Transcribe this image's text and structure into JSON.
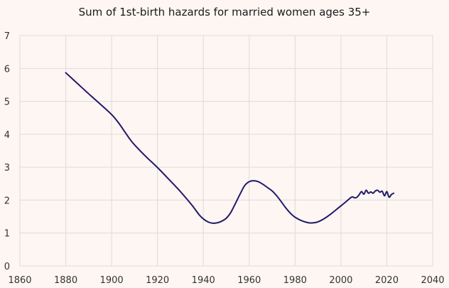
{
  "chart_data": {
    "type": "line",
    "title": "Sum of 1st-birth hazards for married women ages 35+",
    "xlabel": "",
    "ylabel": "",
    "xlim": [
      1860,
      2040
    ],
    "ylim": [
      0,
      7
    ],
    "xticks": [
      1860,
      1880,
      1900,
      1920,
      1940,
      1960,
      1980,
      2000,
      2020,
      2040
    ],
    "yticks": [
      0,
      1,
      2,
      3,
      4,
      5,
      6,
      7
    ],
    "grid": true,
    "legend": "none",
    "series": [
      {
        "color": "#22196b",
        "points": [
          [
            1880,
            5.87
          ],
          [
            1885,
            5.55
          ],
          [
            1890,
            5.23
          ],
          [
            1895,
            4.92
          ],
          [
            1900,
            4.6
          ],
          [
            1903,
            4.35
          ],
          [
            1906,
            4.05
          ],
          [
            1908,
            3.85
          ],
          [
            1910,
            3.68
          ],
          [
            1915,
            3.32
          ],
          [
            1920,
            2.99
          ],
          [
            1925,
            2.63
          ],
          [
            1930,
            2.26
          ],
          [
            1935,
            1.85
          ],
          [
            1938,
            1.57
          ],
          [
            1940,
            1.43
          ],
          [
            1942,
            1.34
          ],
          [
            1944,
            1.3
          ],
          [
            1946,
            1.31
          ],
          [
            1948,
            1.36
          ],
          [
            1950,
            1.45
          ],
          [
            1952,
            1.63
          ],
          [
            1954,
            1.9
          ],
          [
            1956,
            2.18
          ],
          [
            1958,
            2.44
          ],
          [
            1960,
            2.56
          ],
          [
            1962,
            2.59
          ],
          [
            1964,
            2.56
          ],
          [
            1966,
            2.48
          ],
          [
            1968,
            2.38
          ],
          [
            1970,
            2.28
          ],
          [
            1972,
            2.13
          ],
          [
            1974,
            1.95
          ],
          [
            1976,
            1.76
          ],
          [
            1978,
            1.6
          ],
          [
            1980,
            1.48
          ],
          [
            1983,
            1.37
          ],
          [
            1986,
            1.31
          ],
          [
            1988,
            1.31
          ],
          [
            1990,
            1.34
          ],
          [
            1993,
            1.45
          ],
          [
            1996,
            1.6
          ],
          [
            1999,
            1.77
          ],
          [
            2002,
            1.94
          ],
          [
            2004,
            2.06
          ],
          [
            2005,
            2.1
          ],
          [
            2006,
            2.07
          ],
          [
            2007,
            2.09
          ],
          [
            2008,
            2.17
          ],
          [
            2009,
            2.26
          ],
          [
            2010,
            2.18
          ],
          [
            2011,
            2.3
          ],
          [
            2012,
            2.21
          ],
          [
            2013,
            2.25
          ],
          [
            2014,
            2.21
          ],
          [
            2015,
            2.28
          ],
          [
            2016,
            2.3
          ],
          [
            2017,
            2.24
          ],
          [
            2018,
            2.27
          ],
          [
            2019,
            2.13
          ],
          [
            2020,
            2.26
          ],
          [
            2021,
            2.09
          ],
          [
            2022,
            2.17
          ],
          [
            2023,
            2.21
          ]
        ]
      }
    ]
  },
  "colors": {
    "background": "#fdf6f2",
    "grid": "#dcdcdc",
    "line": "#22196b"
  }
}
